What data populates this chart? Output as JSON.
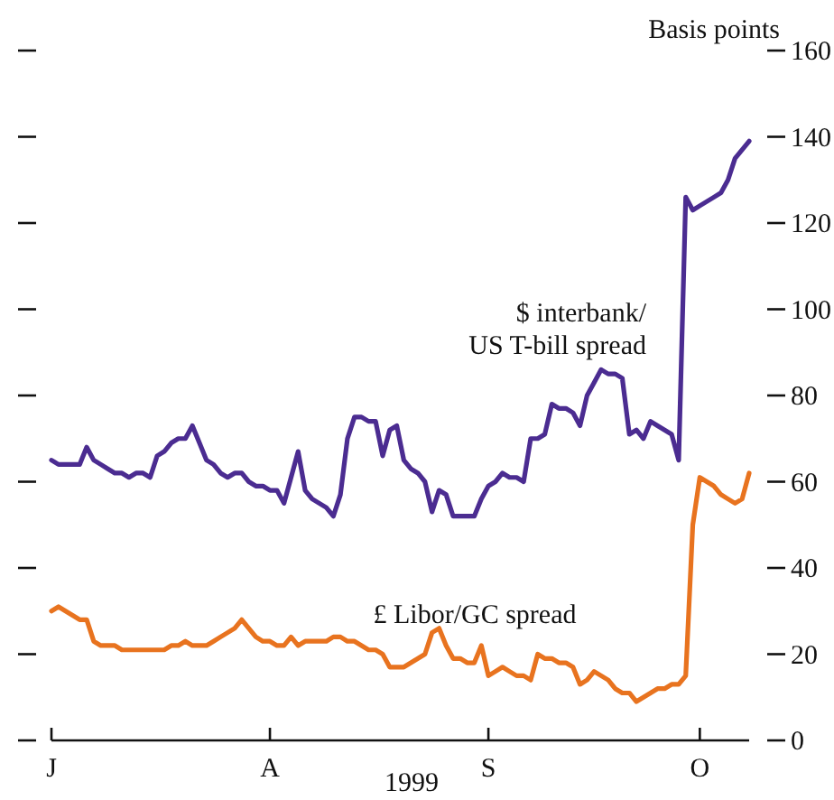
{
  "chart_data": {
    "type": "line",
    "xlabel": "1999",
    "ylabel": "Basis points",
    "categories": [
      "J",
      null,
      null,
      null,
      null,
      null,
      null,
      null,
      null,
      null,
      null,
      null,
      null,
      null,
      null,
      null,
      null,
      null,
      null,
      null,
      null,
      null,
      null,
      null,
      null,
      null,
      null,
      null,
      null,
      null,
      null,
      "A",
      null,
      null,
      null,
      null,
      null,
      null,
      null,
      null,
      null,
      null,
      null,
      null,
      null,
      null,
      null,
      null,
      null,
      null,
      null,
      null,
      null,
      null,
      null,
      null,
      null,
      null,
      null,
      null,
      null,
      null,
      "S",
      null,
      null,
      null,
      null,
      null,
      null,
      null,
      null,
      null,
      null,
      null,
      null,
      null,
      null,
      null,
      null,
      null,
      null,
      null,
      null,
      null,
      null,
      null,
      null,
      null,
      null,
      null,
      null,
      null,
      "O",
      null,
      null,
      null,
      null,
      null,
      null,
      null
    ],
    "ylim": [
      0,
      160
    ],
    "yticks": [
      0,
      20,
      40,
      60,
      80,
      100,
      120,
      140,
      160
    ],
    "grid": false,
    "legend": false,
    "line_style": "solid",
    "marker": "none",
    "series": [
      {
        "name": "$ interbank/\nUS T-bill spread",
        "color": "#4b2c91",
        "values": [
          65,
          64,
          64,
          64,
          64,
          68,
          65,
          64,
          63,
          62,
          62,
          61,
          62,
          62,
          61,
          66,
          67,
          69,
          70,
          70,
          73,
          69,
          65,
          64,
          62,
          61,
          62,
          62,
          60,
          59,
          59,
          58,
          58,
          55,
          61,
          67,
          58,
          56,
          55,
          54,
          52,
          57,
          70,
          75,
          75,
          74,
          74,
          66,
          72,
          73,
          65,
          63,
          62,
          60,
          53,
          58,
          57,
          52,
          52,
          52,
          52,
          56,
          59,
          60,
          62,
          61,
          61,
          60,
          70,
          70,
          71,
          78,
          77,
          77,
          76,
          73,
          80,
          83,
          86,
          85,
          85,
          84,
          71,
          72,
          70,
          74,
          73,
          72,
          71,
          65,
          126,
          123,
          124,
          125,
          126,
          127,
          130,
          135,
          137,
          139
        ]
      },
      {
        "name": "£ Libor/GC spread",
        "color": "#e8731f",
        "values": [
          30,
          31,
          30,
          29,
          28,
          28,
          23,
          22,
          22,
          22,
          21,
          21,
          21,
          21,
          21,
          21,
          21,
          22,
          22,
          23,
          22,
          22,
          22,
          23,
          24,
          25,
          26,
          28,
          26,
          24,
          23,
          23,
          22,
          22,
          24,
          22,
          23,
          23,
          23,
          23,
          24,
          24,
          23,
          23,
          22,
          21,
          21,
          20,
          17,
          17,
          17,
          18,
          19,
          20,
          25,
          26,
          22,
          19,
          19,
          18,
          18,
          22,
          15,
          16,
          17,
          16,
          15,
          15,
          14,
          20,
          19,
          19,
          18,
          18,
          17,
          13,
          14,
          16,
          15,
          14,
          12,
          11,
          11,
          9,
          10,
          11,
          12,
          12,
          13,
          13,
          15,
          50,
          61,
          60,
          59,
          57,
          56,
          55,
          56,
          62
        ]
      }
    ]
  }
}
